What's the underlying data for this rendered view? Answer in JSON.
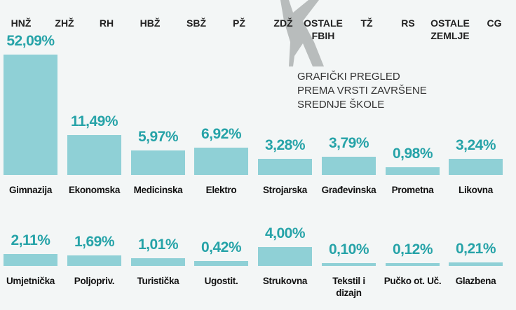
{
  "header": {
    "regions": [
      "HNŽ",
      "ZHŽ",
      "RH",
      "HBŽ",
      "SBŽ",
      "PŽ",
      "ZDŽ",
      "OSTALE FBIH",
      "TŽ",
      "RS",
      "OSTALE ZEMLJE",
      "CG"
    ]
  },
  "note": {
    "lines": [
      "GRAFIČKI PREGLED",
      "PREMA VRSTI ZAVRŠENE",
      "SREDNJE ŠKOLE"
    ]
  },
  "chart_data": {
    "type": "bar",
    "color": "#8fd0d6",
    "label_color": "#26a3a8",
    "categories": [
      "Gimnazija",
      "Ekonomska",
      "Medicinska",
      "Elektro",
      "Strojarska",
      "Građevinska",
      "Prometna",
      "Likovna",
      "Umjetnička",
      "Poljopriv.",
      "Turistička",
      "Ugostit.",
      "Strukovna",
      "Tekstil i dizajn",
      "Pučko ot. Uč.",
      "Glazbena"
    ],
    "values": [
      52.09,
      11.49,
      5.97,
      6.92,
      3.28,
      3.79,
      0.98,
      3.24,
      2.11,
      1.69,
      1.01,
      0.42,
      4.0,
      0.1,
      0.12,
      0.21
    ],
    "value_labels": [
      "52,09%",
      "11,49%",
      "5,97%",
      "6,92%",
      "3,28%",
      "3,79%",
      "0,98%",
      "3,24%",
      "2,11%",
      "1,69%",
      "1,01%",
      "0,42%",
      "4,00%",
      "0,10%",
      "0,12%",
      "0,21%"
    ]
  }
}
